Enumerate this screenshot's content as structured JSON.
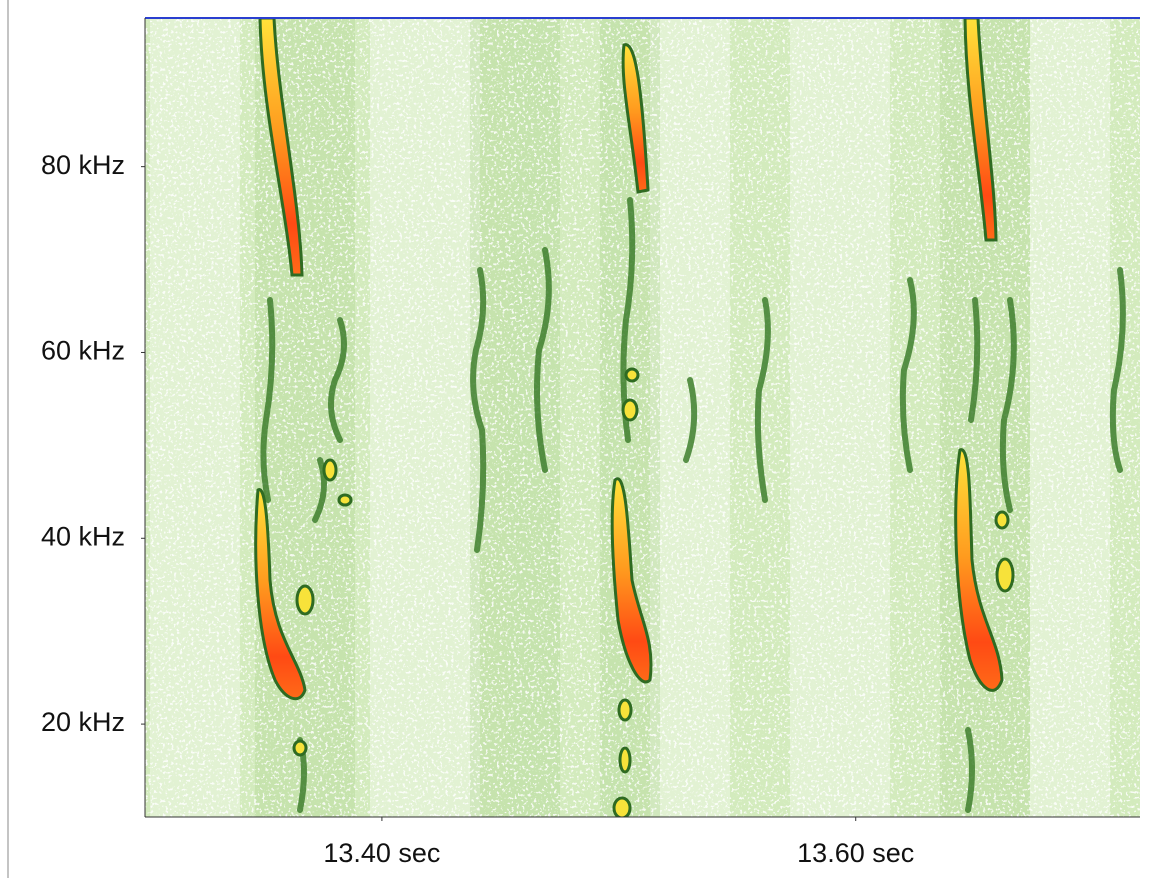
{
  "chart_data": {
    "type": "spectrogram",
    "xlim": [
      13.3,
      13.72
    ],
    "xticks": [
      {
        "value": 13.4,
        "label": "13.40 sec"
      },
      {
        "value": 13.6,
        "label": "13.60 sec"
      }
    ],
    "ylim": [
      10,
      96
    ],
    "yticks": [
      {
        "value": 20,
        "label": "20 kHz"
      },
      {
        "value": 40,
        "label": "40 kHz"
      },
      {
        "value": 60,
        "label": "60 kHz"
      },
      {
        "value": 80,
        "label": "80 kHz"
      }
    ]
  }
}
